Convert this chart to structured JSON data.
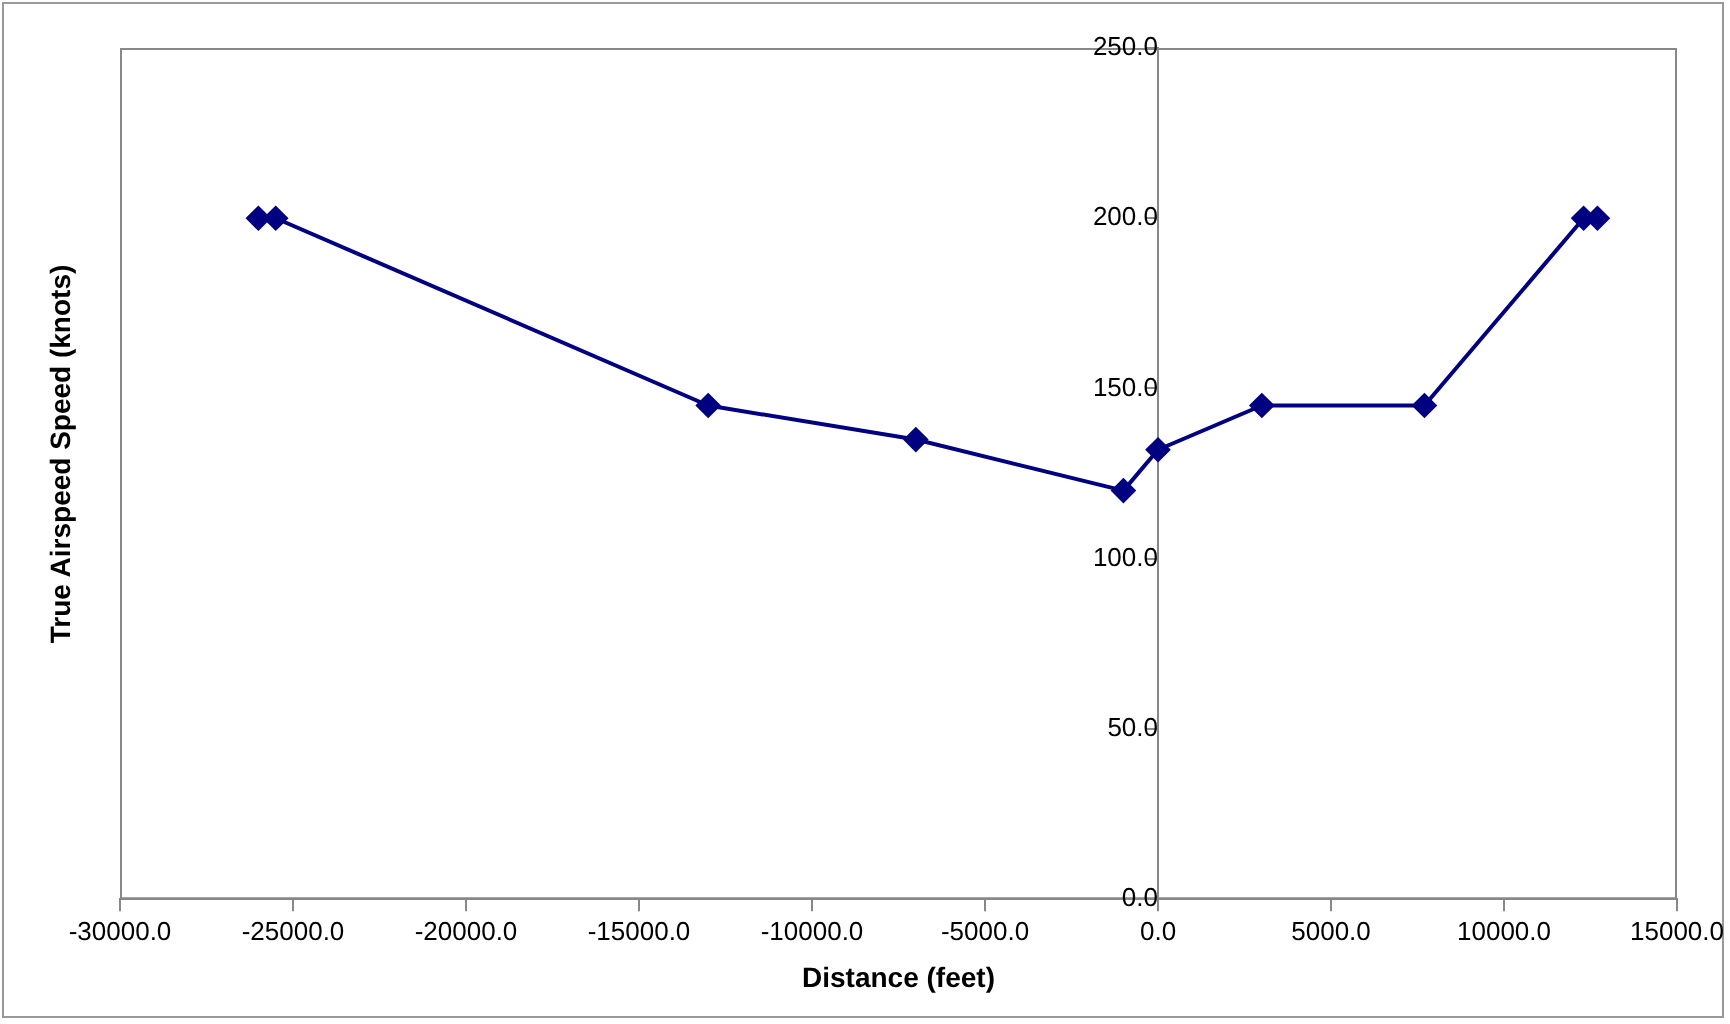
{
  "chart_data": {
    "type": "line",
    "xlabel": "Distance (feet)",
    "ylabel": "True Airspeed Speed (knots)",
    "x": [
      -26000,
      -25500,
      -13000,
      -7000,
      -1000,
      0,
      3000,
      7700,
      12300,
      12700
    ],
    "series": [
      {
        "color": "#000080",
        "values": [
          200,
          200,
          145,
          135,
          120,
          132,
          145,
          145,
          200,
          200
        ]
      }
    ],
    "xlim": [
      -30000,
      15000
    ],
    "xticks": [
      {
        "value": -30000,
        "label": "-30000.0"
      },
      {
        "value": -25000,
        "label": "-25000.0"
      },
      {
        "value": -20000,
        "label": "-20000.0"
      },
      {
        "value": -15000,
        "label": "-15000.0"
      },
      {
        "value": -10000,
        "label": "-10000.0"
      },
      {
        "value": -5000,
        "label": "-5000.0"
      },
      {
        "value": 0,
        "label": "0.0"
      },
      {
        "value": 5000,
        "label": "5000.0"
      },
      {
        "value": 10000,
        "label": "10000.0"
      },
      {
        "value": 15000,
        "label": "15000.0"
      }
    ],
    "ylim": [
      0,
      250
    ],
    "yticks": [
      {
        "value": 0,
        "label": "0.0"
      },
      {
        "value": 50,
        "label": "50.0"
      },
      {
        "value": 100,
        "label": "100.0"
      },
      {
        "value": 150,
        "label": "150.0"
      },
      {
        "value": 200,
        "label": "200.0"
      },
      {
        "value": 250,
        "label": "250.0"
      }
    ],
    "grid": false,
    "legend": false,
    "marker": "diamond",
    "line_style": "solid"
  }
}
